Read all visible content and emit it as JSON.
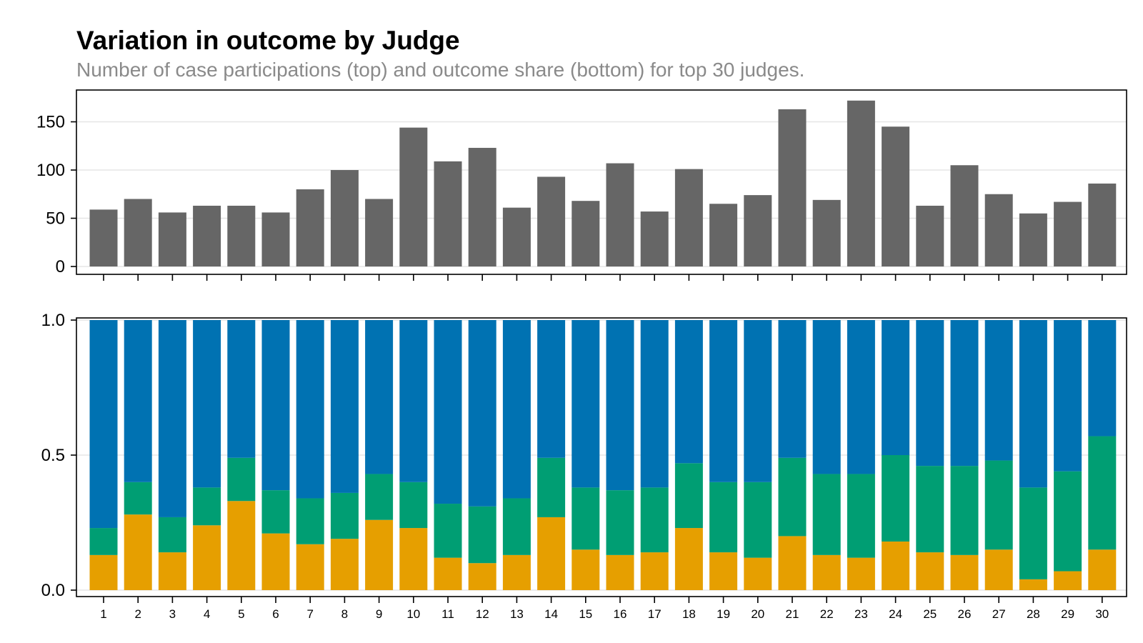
{
  "title": "Variation in outcome by Judge",
  "subtitle": "Number of case participations (top) and outcome share (bottom) for top 30 judges.",
  "colors": {
    "count_bar": "#666666",
    "segment_bottom": "#E69F00",
    "segment_middle": "#009E73",
    "segment_top": "#0072B2",
    "grid": "#e5e5e5",
    "axis": "#000000"
  },
  "chart_data": [
    {
      "type": "bar",
      "categories": [
        "1",
        "2",
        "3",
        "4",
        "5",
        "6",
        "7",
        "8",
        "9",
        "10",
        "11",
        "12",
        "13",
        "14",
        "15",
        "16",
        "17",
        "18",
        "19",
        "20",
        "21",
        "22",
        "23",
        "24",
        "25",
        "26",
        "27",
        "28",
        "29",
        "30"
      ],
      "values": [
        59,
        70,
        56,
        63,
        63,
        56,
        80,
        100,
        70,
        144,
        109,
        123,
        61,
        93,
        68,
        107,
        57,
        101,
        65,
        74,
        163,
        69,
        172,
        145,
        63,
        105,
        75,
        55,
        67,
        86
      ],
      "ylim": [
        0,
        180
      ],
      "yticks": [
        0,
        50,
        100,
        150
      ],
      "ytick_labels": [
        "0",
        "50",
        "100",
        "150"
      ],
      "grid": true
    },
    {
      "type": "bar",
      "stacked": true,
      "categories": [
        "1",
        "2",
        "3",
        "4",
        "5",
        "6",
        "7",
        "8",
        "9",
        "10",
        "11",
        "12",
        "13",
        "14",
        "15",
        "16",
        "17",
        "18",
        "19",
        "20",
        "21",
        "22",
        "23",
        "24",
        "25",
        "26",
        "27",
        "28",
        "29",
        "30"
      ],
      "series": [
        {
          "values": [
            0.13,
            0.28,
            0.14,
            0.24,
            0.33,
            0.21,
            0.17,
            0.19,
            0.26,
            0.23,
            0.12,
            0.1,
            0.13,
            0.27,
            0.15,
            0.13,
            0.14,
            0.23,
            0.14,
            0.12,
            0.2,
            0.13,
            0.12,
            0.18,
            0.14,
            0.13,
            0.15,
            0.04,
            0.07,
            0.15
          ]
        },
        {
          "values": [
            0.1,
            0.12,
            0.13,
            0.14,
            0.16,
            0.16,
            0.17,
            0.17,
            0.17,
            0.17,
            0.2,
            0.21,
            0.21,
            0.22,
            0.23,
            0.24,
            0.24,
            0.24,
            0.26,
            0.28,
            0.29,
            0.3,
            0.31,
            0.32,
            0.32,
            0.33,
            0.33,
            0.34,
            0.37,
            0.42
          ]
        },
        {
          "values": [
            0.77,
            0.6,
            0.73,
            0.62,
            0.51,
            0.63,
            0.66,
            0.64,
            0.57,
            0.6,
            0.68,
            0.69,
            0.66,
            0.51,
            0.62,
            0.63,
            0.62,
            0.53,
            0.6,
            0.6,
            0.51,
            0.57,
            0.57,
            0.5,
            0.54,
            0.54,
            0.52,
            0.62,
            0.56,
            0.43
          ]
        }
      ],
      "ylim": [
        0,
        1.0
      ],
      "yticks": [
        0,
        0.5,
        1.0
      ],
      "ytick_labels": [
        "0.0",
        "0.5",
        "1.0"
      ],
      "grid": true
    }
  ]
}
